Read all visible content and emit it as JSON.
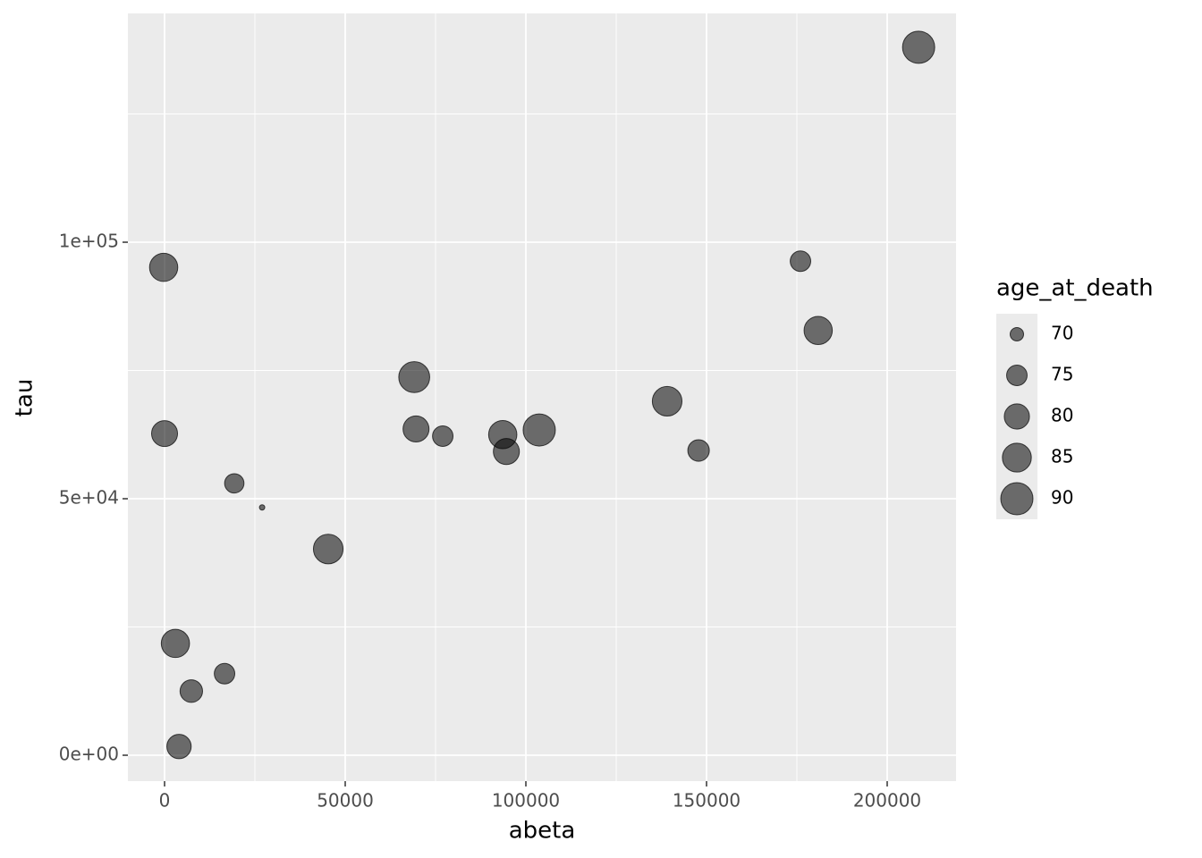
{
  "chart_data": {
    "type": "scatter",
    "x_label": "abeta",
    "y_label": "tau",
    "x": [
      208700,
      176000,
      180900,
      -250,
      0,
      69100,
      69600,
      77000,
      93600,
      94600,
      103700,
      139100,
      147800,
      19300,
      27000,
      45300,
      3000,
      16600,
      7400,
      4000
    ],
    "values": [
      138000,
      96300,
      82800,
      95100,
      62700,
      73700,
      63600,
      62200,
      62500,
      59200,
      63400,
      69000,
      59400,
      53000,
      48300,
      40200,
      21800,
      15900,
      12500,
      1700
    ],
    "sizes": [
      90,
      75,
      84,
      84,
      81,
      88,
      81,
      75,
      84,
      81,
      90,
      86,
      76,
      74,
      68,
      86,
      84,
      75,
      77,
      79
    ],
    "color": "#000000",
    "xlim": [
      -10150,
      219060
    ],
    "ylim": [
      -5050,
      144600
    ],
    "xticks": [
      0,
      50000,
      100000,
      150000,
      200000
    ],
    "xminor": [
      25000,
      75000,
      125000,
      175000
    ],
    "yticks": [
      {
        "value": 0,
        "label": "0e+00"
      },
      {
        "value": 50000,
        "label": "5e+04"
      },
      {
        "value": 100000,
        "label": "1e+05"
      }
    ],
    "yminor": [
      25000,
      75000,
      125000
    ],
    "grid": true,
    "size_legend": {
      "title": "age_at_death",
      "breaks": [
        70,
        75,
        80,
        85,
        90
      ]
    }
  }
}
